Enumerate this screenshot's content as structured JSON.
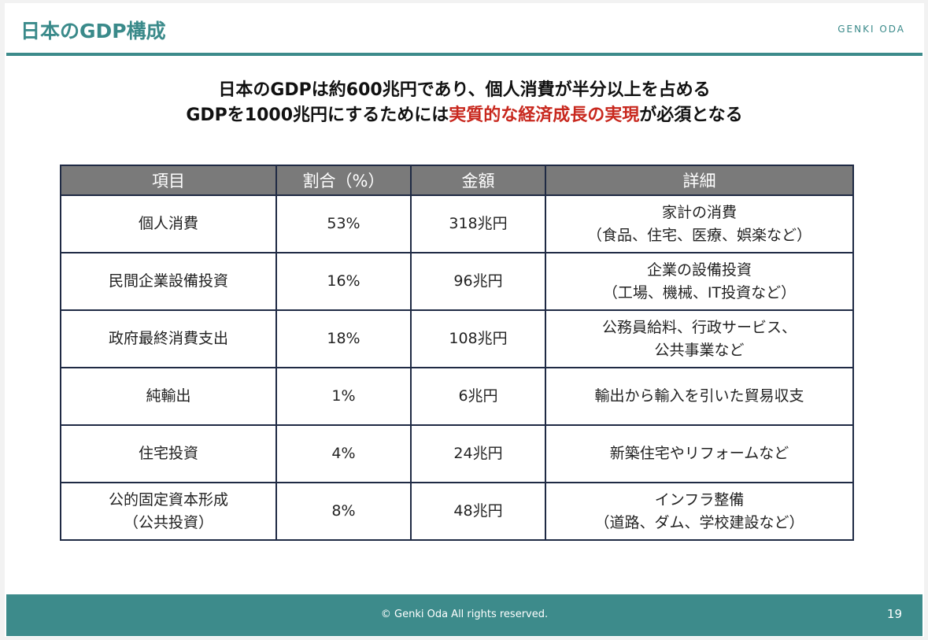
{
  "header": {
    "title": "日本のGDP構成",
    "author": "GENKI ODA"
  },
  "headline": {
    "line1": "日本のGDPは約600兆円であり、個人消費が半分以上を占める",
    "line2": {
      "before": "GDPを1000兆円にするためには",
      "emphasis": "実質的な経済成長の実現",
      "after": "が必須となる"
    }
  },
  "table": {
    "columns": [
      "項目",
      "割合（%）",
      "金額",
      "詳細"
    ],
    "rows": [
      [
        [
          "個人消費"
        ],
        [
          "53%"
        ],
        [
          "318兆円"
        ],
        [
          "家計の消費",
          "（食品、住宅、医療、娯楽など）"
        ]
      ],
      [
        [
          "民間企業設備投資"
        ],
        [
          "16%"
        ],
        [
          "96兆円"
        ],
        [
          "企業の設備投資",
          "（工場、機械、IT投資など）"
        ]
      ],
      [
        [
          "政府最終消費支出"
        ],
        [
          "18%"
        ],
        [
          "108兆円"
        ],
        [
          "公務員給料、行政サービス、",
          "公共事業など"
        ]
      ],
      [
        [
          "純輸出"
        ],
        [
          "1%"
        ],
        [
          "6兆円"
        ],
        [
          "輸出から輸入を引いた貿易収支"
        ]
      ],
      [
        [
          "住宅投資"
        ],
        [
          "4%"
        ],
        [
          "24兆円"
        ],
        [
          "新築住宅やリフォームなど"
        ]
      ],
      [
        [
          "公的固定資本形成",
          "（公共投資）"
        ],
        [
          "8%"
        ],
        [
          "48兆円"
        ],
        [
          "インフラ整備",
          "（道路、ダム、学校建設など）"
        ]
      ]
    ]
  },
  "footer": {
    "copyright": "© Genki Oda All rights reserved.",
    "page": "19"
  }
}
